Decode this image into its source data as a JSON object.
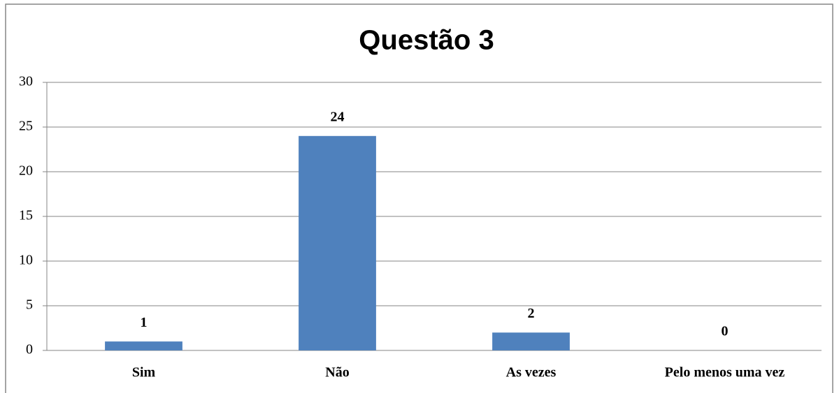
{
  "chart_data": {
    "type": "bar",
    "title": "Questão 3",
    "categories": [
      "Sim",
      "Não",
      "As vezes",
      "Pelo menos uma vez"
    ],
    "values": [
      1,
      24,
      2,
      0
    ],
    "color": "#4f81bd",
    "ylim": [
      0,
      30
    ],
    "yticks": [
      0,
      5,
      10,
      15,
      20,
      25,
      30
    ],
    "grid": true
  }
}
